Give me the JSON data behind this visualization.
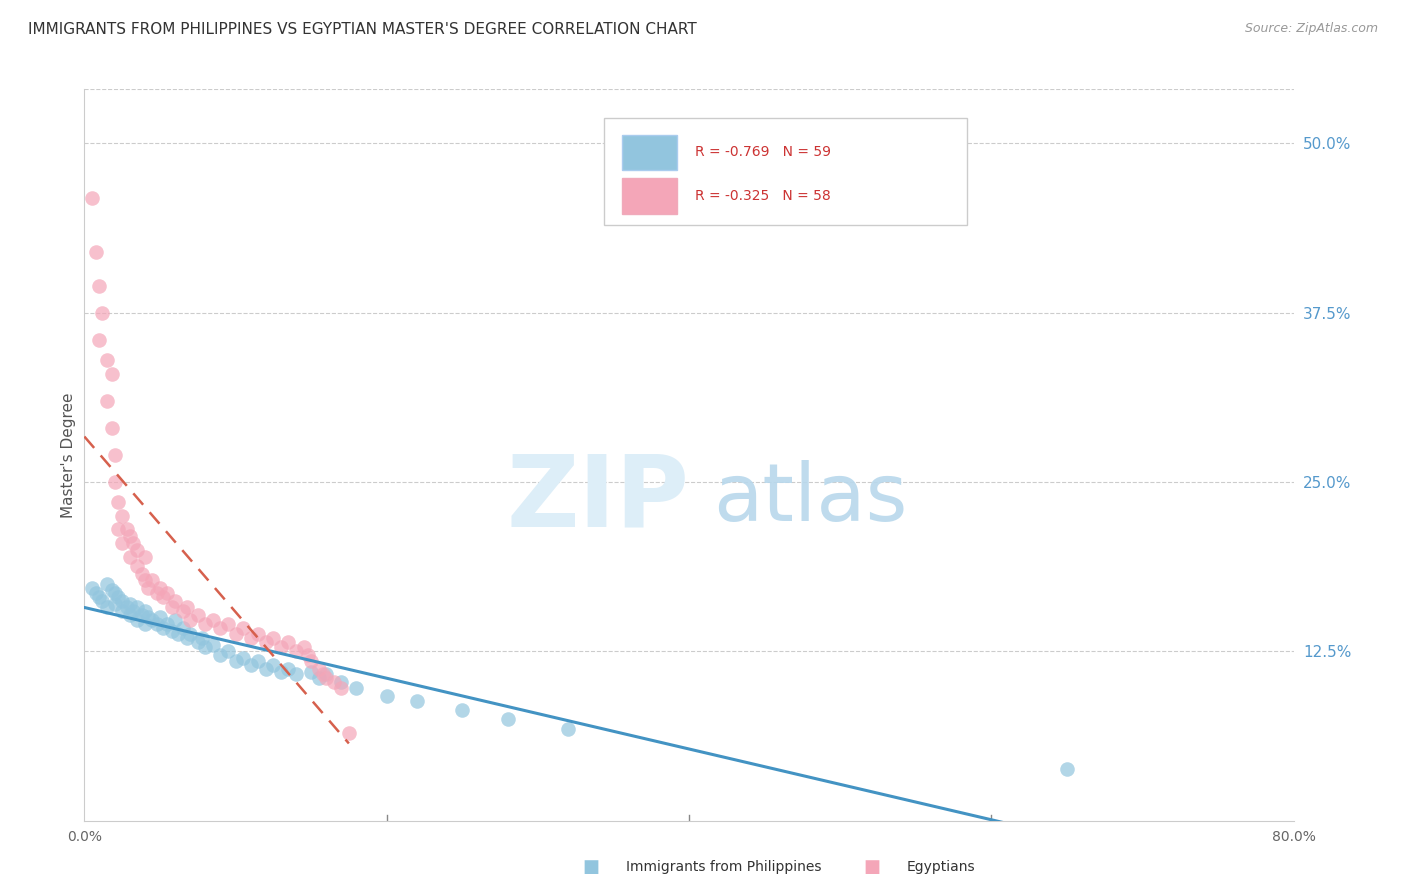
{
  "title": "IMMIGRANTS FROM PHILIPPINES VS EGYPTIAN MASTER'S DEGREE CORRELATION CHART",
  "source": "Source: ZipAtlas.com",
  "ylabel": "Master's Degree",
  "right_yticks": [
    "50.0%",
    "37.5%",
    "25.0%",
    "12.5%"
  ],
  "right_ytick_vals": [
    0.5,
    0.375,
    0.25,
    0.125
  ],
  "xlim": [
    0.0,
    0.8
  ],
  "ylim": [
    0.0,
    0.54
  ],
  "legend_blue_r": "-0.769",
  "legend_blue_n": "59",
  "legend_pink_r": "-0.325",
  "legend_pink_n": "58",
  "legend_label_blue": "Immigrants from Philippines",
  "legend_label_pink": "Egyptians",
  "blue_color": "#92c5de",
  "pink_color": "#f4a6b8",
  "blue_line_color": "#4393c3",
  "pink_line_color": "#d6604d",
  "blue_x": [
    0.005,
    0.008,
    0.01,
    0.012,
    0.015,
    0.015,
    0.018,
    0.02,
    0.02,
    0.022,
    0.025,
    0.025,
    0.028,
    0.03,
    0.03,
    0.032,
    0.035,
    0.035,
    0.038,
    0.04,
    0.04,
    0.042,
    0.045,
    0.048,
    0.05,
    0.052,
    0.055,
    0.058,
    0.06,
    0.062,
    0.065,
    0.068,
    0.07,
    0.075,
    0.078,
    0.08,
    0.085,
    0.09,
    0.095,
    0.1,
    0.105,
    0.11,
    0.115,
    0.12,
    0.125,
    0.13,
    0.135,
    0.14,
    0.15,
    0.155,
    0.16,
    0.17,
    0.18,
    0.2,
    0.22,
    0.25,
    0.28,
    0.32,
    0.65
  ],
  "blue_y": [
    0.172,
    0.168,
    0.165,
    0.162,
    0.175,
    0.158,
    0.17,
    0.168,
    0.16,
    0.165,
    0.162,
    0.155,
    0.158,
    0.16,
    0.152,
    0.155,
    0.158,
    0.148,
    0.152,
    0.155,
    0.145,
    0.15,
    0.148,
    0.145,
    0.15,
    0.142,
    0.145,
    0.14,
    0.148,
    0.138,
    0.142,
    0.135,
    0.138,
    0.132,
    0.135,
    0.128,
    0.13,
    0.122,
    0.125,
    0.118,
    0.12,
    0.115,
    0.118,
    0.112,
    0.115,
    0.11,
    0.112,
    0.108,
    0.11,
    0.105,
    0.108,
    0.102,
    0.098,
    0.092,
    0.088,
    0.082,
    0.075,
    0.068,
    0.038
  ],
  "pink_x": [
    0.005,
    0.008,
    0.01,
    0.01,
    0.012,
    0.015,
    0.015,
    0.018,
    0.018,
    0.02,
    0.02,
    0.022,
    0.022,
    0.025,
    0.025,
    0.028,
    0.03,
    0.03,
    0.032,
    0.035,
    0.035,
    0.038,
    0.04,
    0.04,
    0.042,
    0.045,
    0.048,
    0.05,
    0.052,
    0.055,
    0.058,
    0.06,
    0.065,
    0.068,
    0.07,
    0.075,
    0.08,
    0.085,
    0.09,
    0.095,
    0.1,
    0.105,
    0.11,
    0.115,
    0.12,
    0.125,
    0.13,
    0.135,
    0.14,
    0.145,
    0.148,
    0.15,
    0.155,
    0.158,
    0.16,
    0.165,
    0.17,
    0.175
  ],
  "pink_y": [
    0.46,
    0.42,
    0.395,
    0.355,
    0.375,
    0.34,
    0.31,
    0.33,
    0.29,
    0.27,
    0.25,
    0.235,
    0.215,
    0.225,
    0.205,
    0.215,
    0.21,
    0.195,
    0.205,
    0.2,
    0.188,
    0.182,
    0.195,
    0.178,
    0.172,
    0.178,
    0.168,
    0.172,
    0.165,
    0.168,
    0.158,
    0.162,
    0.155,
    0.158,
    0.148,
    0.152,
    0.145,
    0.148,
    0.142,
    0.145,
    0.138,
    0.142,
    0.135,
    0.138,
    0.132,
    0.135,
    0.128,
    0.132,
    0.125,
    0.128,
    0.122,
    0.118,
    0.112,
    0.108,
    0.105,
    0.102,
    0.098,
    0.065
  ],
  "xtick_positions": [
    0.0,
    0.2,
    0.4,
    0.6,
    0.8
  ],
  "xtick_labels": [
    "0.0%",
    "",
    "",
    "",
    "80.0%"
  ]
}
